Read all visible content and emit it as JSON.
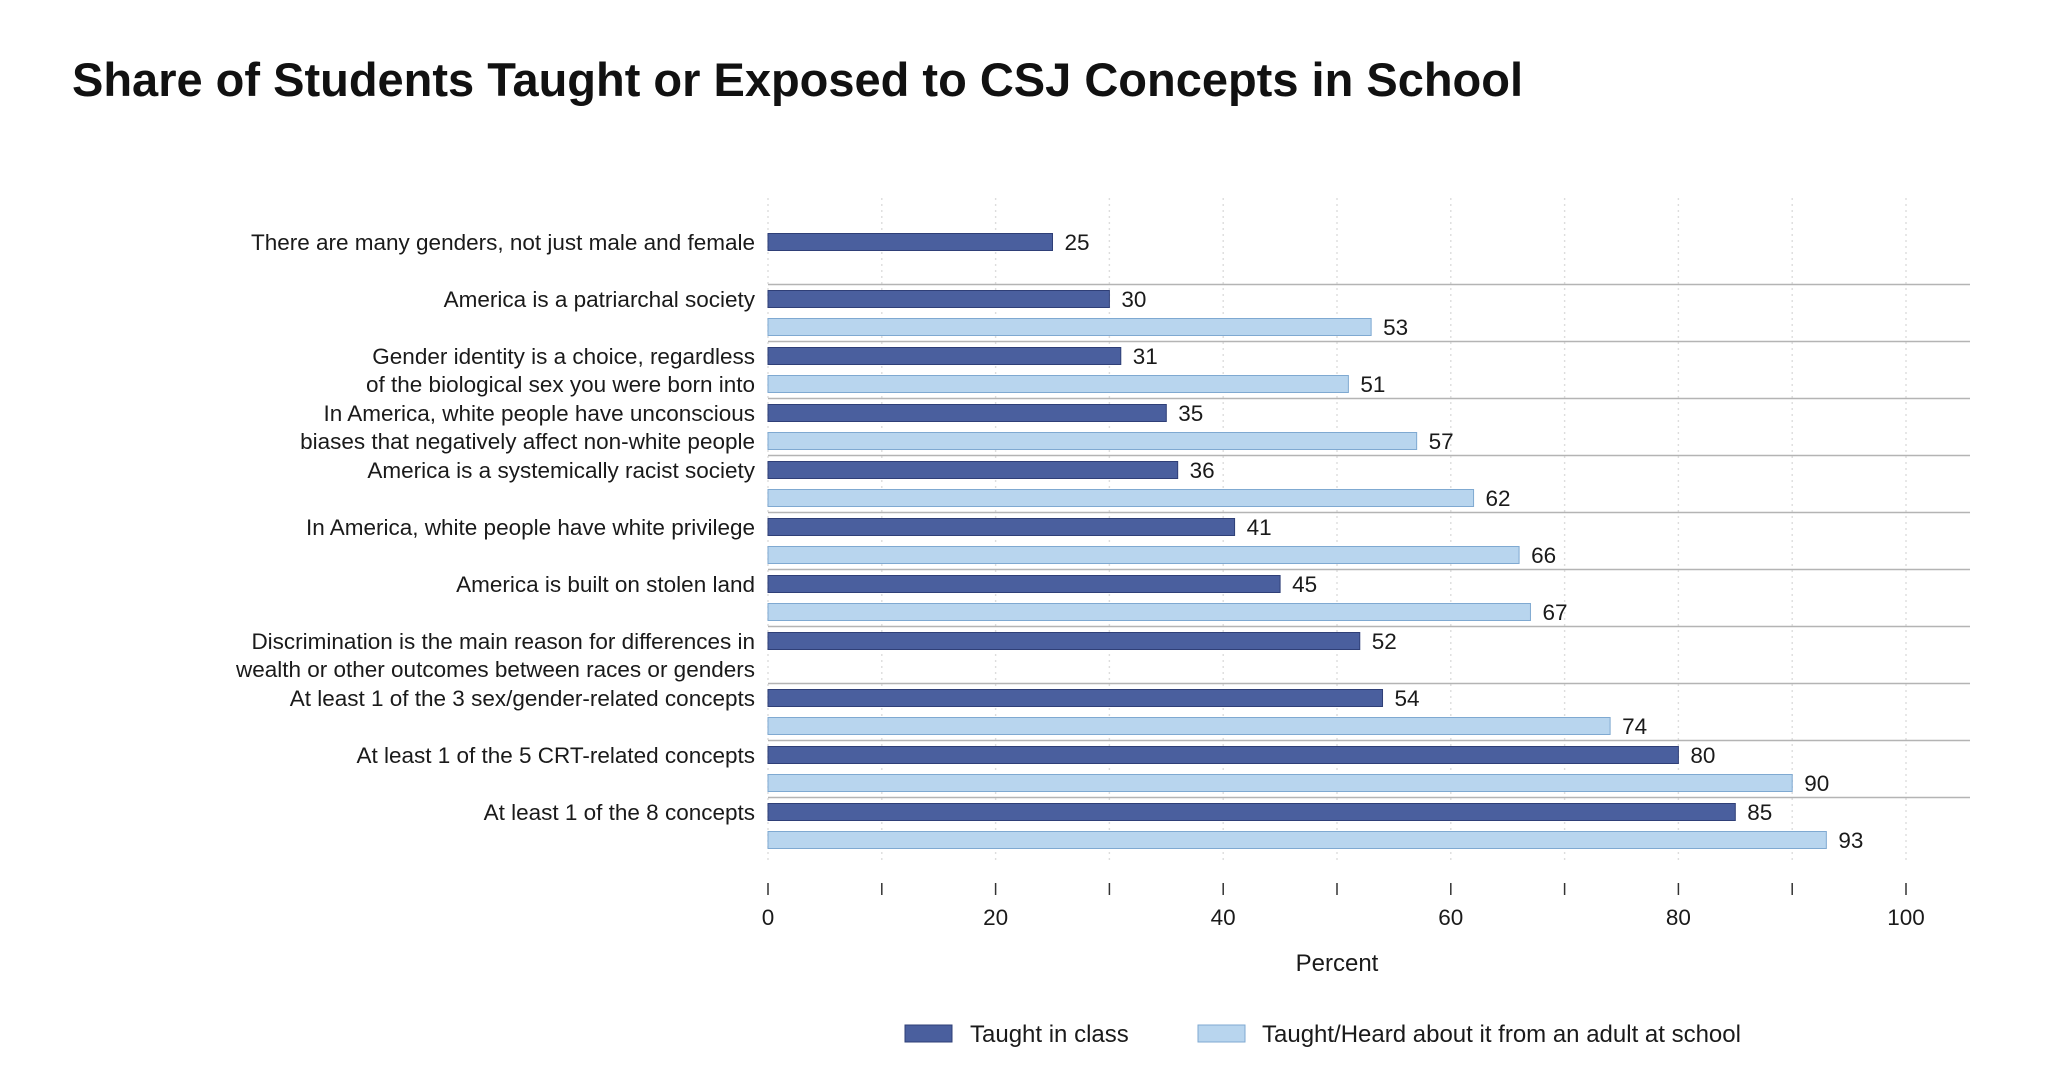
{
  "colors": {
    "taught_in_class": "#4A5F9E",
    "taught_in_class_stroke": "#2F3F77",
    "heard_from_adult": "#B8D5EE",
    "heard_from_adult_stroke": "#7FA9D1",
    "grid": "#dddddd",
    "separator": "#b4b4b4"
  },
  "chart_data": {
    "type": "bar",
    "orientation": "horizontal",
    "title": "Share of Students Taught or Exposed to CSJ Concepts in School",
    "xlabel": "Percent",
    "xlim": [
      0,
      100
    ],
    "xticks": [
      0,
      20,
      40,
      60,
      80,
      100
    ],
    "grid": "vertical dotted",
    "legend_position": "bottom",
    "categories": [
      [
        "There are many genders, not just male and female"
      ],
      [
        "America is a patriarchal society"
      ],
      [
        "Gender identity is a choice, regardless",
        "of the biological sex you were born into"
      ],
      [
        "In America, white people have unconscious",
        "biases that negatively affect non-white people"
      ],
      [
        "America is a systemically racist society"
      ],
      [
        "In America, white people have white privilege"
      ],
      [
        "America is built on stolen land"
      ],
      [
        "Discrimination is the main reason for differences in",
        "wealth or other outcomes between races or genders"
      ],
      [
        "At least 1 of the 3 sex/gender-related concepts"
      ],
      [
        "At least 1 of the 5 CRT-related concepts"
      ],
      [
        "At least 1 of the 8 concepts"
      ]
    ],
    "series": [
      {
        "name": "Taught in class",
        "values": [
          25,
          30,
          31,
          35,
          36,
          41,
          45,
          52,
          54,
          80,
          85
        ]
      },
      {
        "name": "Taught/Heard about it from an adult at school",
        "values": [
          null,
          53,
          51,
          57,
          62,
          66,
          67,
          null,
          74,
          90,
          93
        ]
      }
    ]
  }
}
